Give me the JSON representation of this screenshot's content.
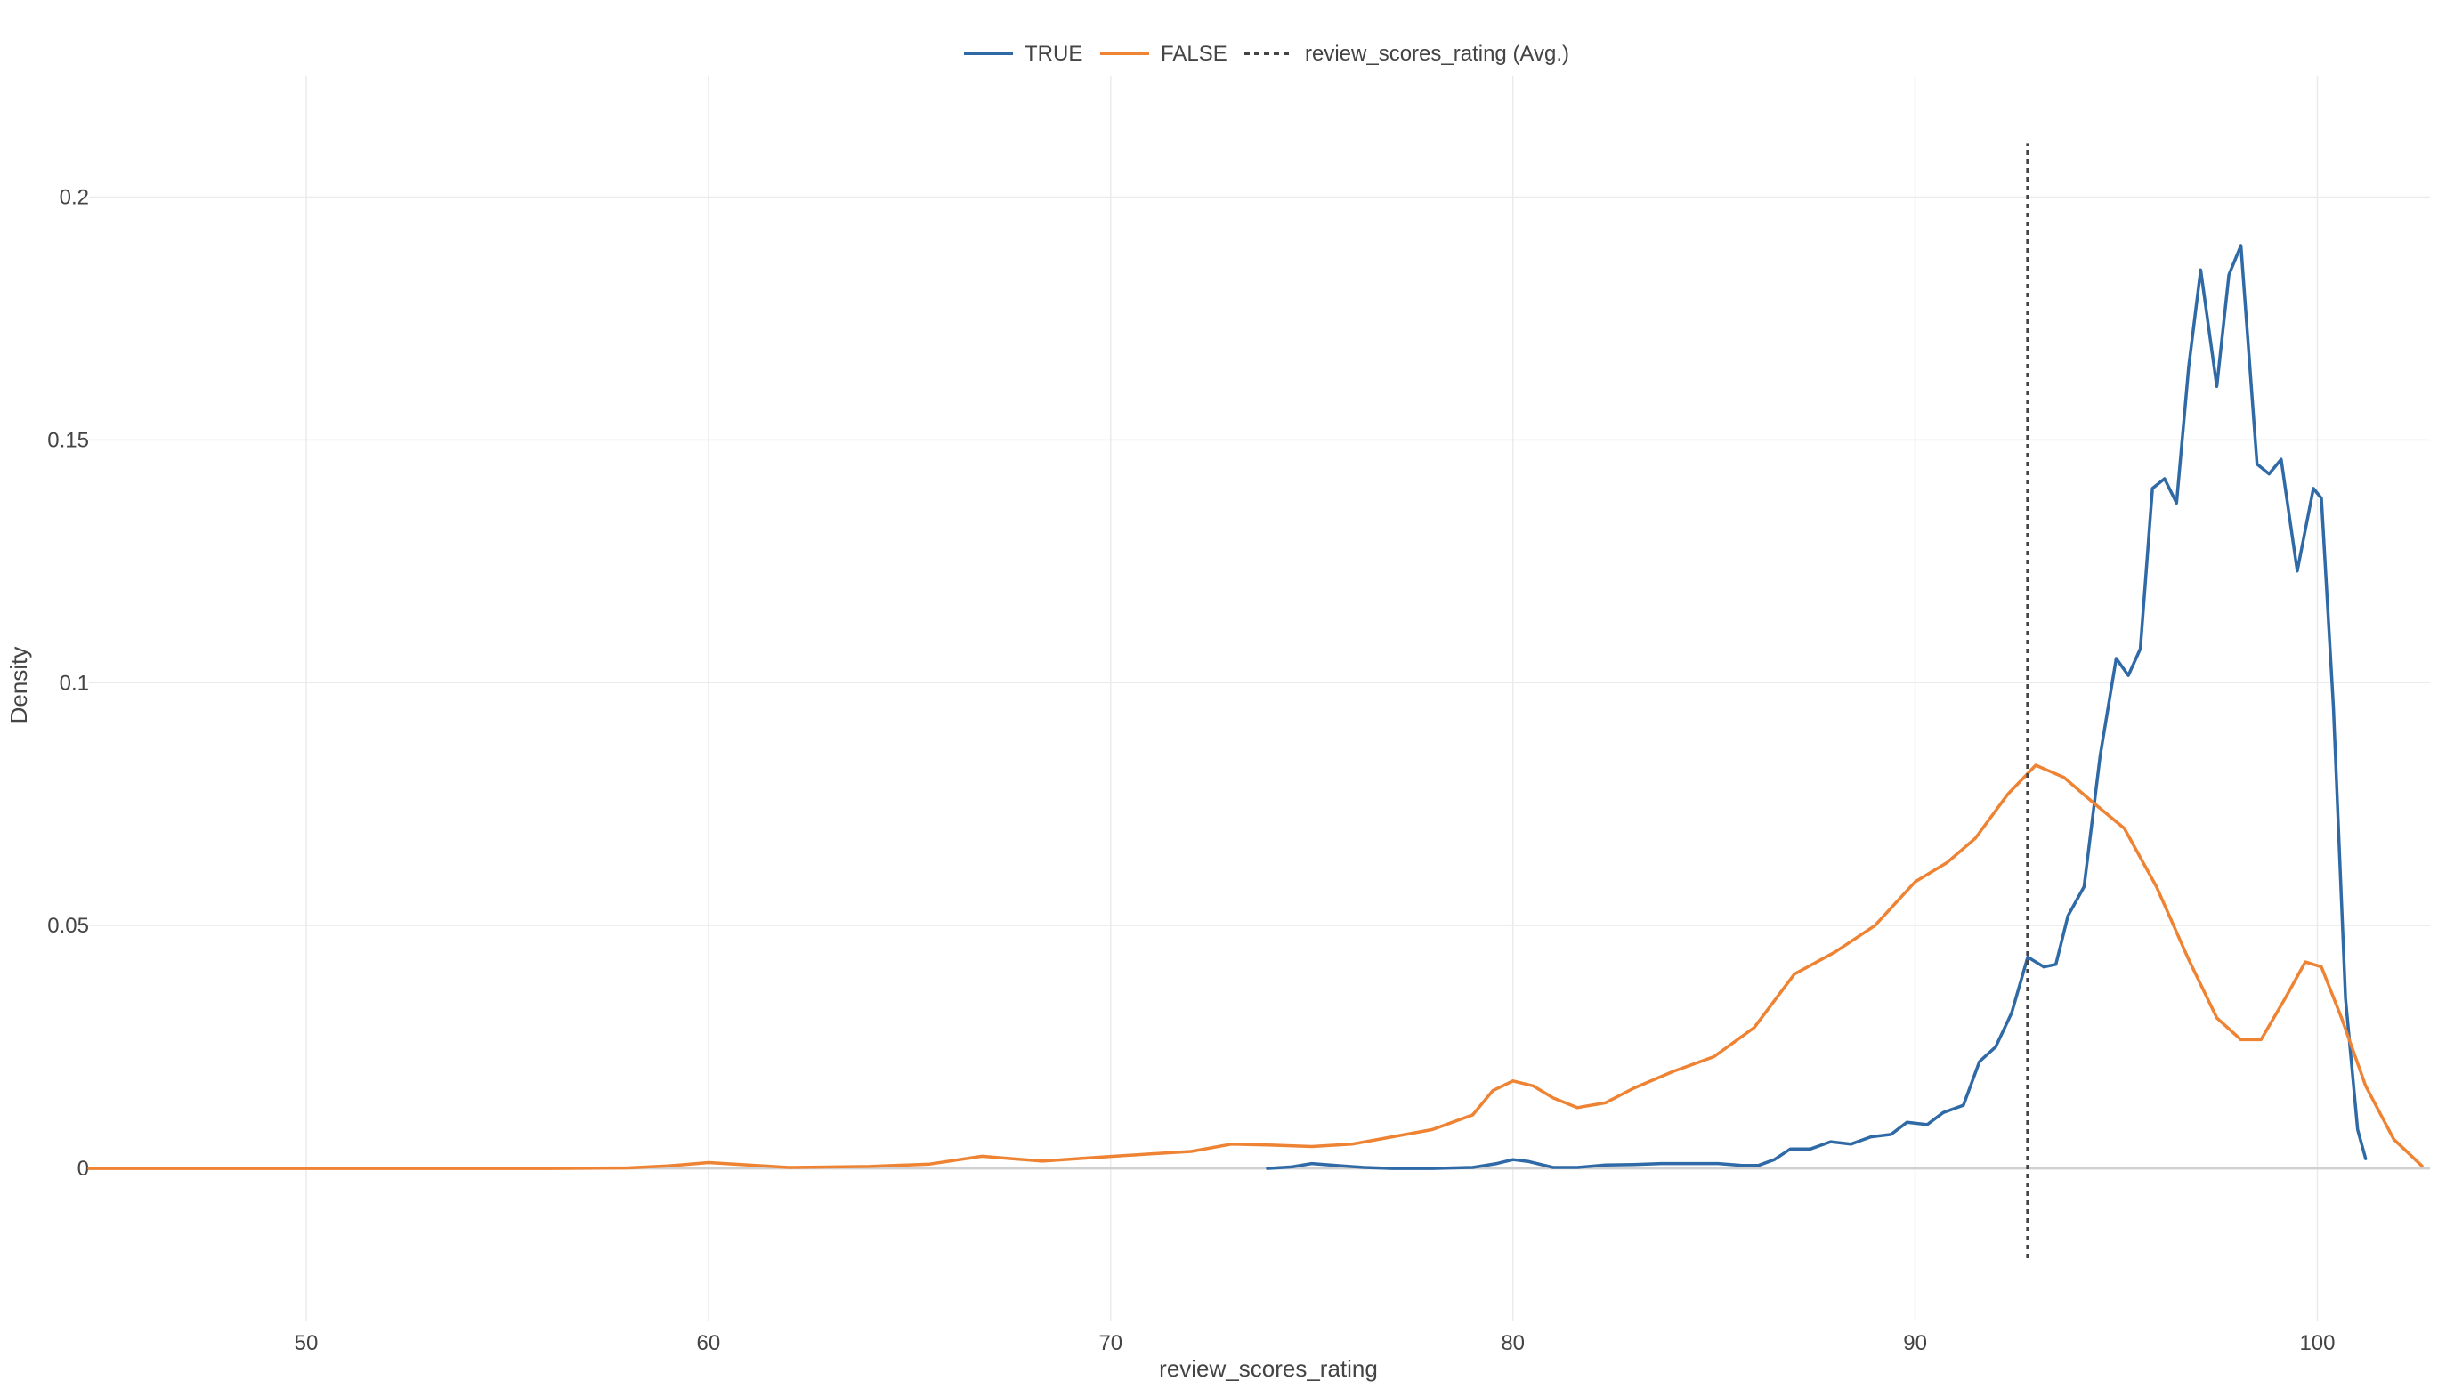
{
  "chart_data": {
    "type": "line",
    "xlabel": "review_scores_rating",
    "ylabel": "Density",
    "xlim": [
      44.6,
      102.8
    ],
    "ylim": [
      -0.0315,
      0.225
    ],
    "x_ticks": [
      50,
      60,
      70,
      80,
      90,
      100
    ],
    "x_tick_labels": [
      "50",
      "60",
      "70",
      "80",
      "90",
      "100"
    ],
    "y_ticks": [
      0,
      0.05,
      0.1,
      0.15,
      0.2
    ],
    "y_tick_labels": [
      "0",
      "0.05",
      "0.1",
      "0.15",
      "0.2"
    ],
    "grid": true,
    "legend_position": "top-center",
    "series": [
      {
        "name": "TRUE",
        "color": "#2f6aa6",
        "style": "solid",
        "points": [
          [
            73.9,
            0.0
          ],
          [
            74.5,
            0.0003
          ],
          [
            75.0,
            0.001
          ],
          [
            75.6,
            0.0006
          ],
          [
            76.3,
            0.0002
          ],
          [
            77.0,
            0.0
          ],
          [
            78.0,
            0.0
          ],
          [
            79.0,
            0.0002
          ],
          [
            79.6,
            0.001
          ],
          [
            80.0,
            0.0018
          ],
          [
            80.4,
            0.0014
          ],
          [
            81.0,
            0.0002
          ],
          [
            81.6,
            0.0002
          ],
          [
            82.3,
            0.0007
          ],
          [
            83.0,
            0.0008
          ],
          [
            83.7,
            0.001
          ],
          [
            84.4,
            0.001
          ],
          [
            85.1,
            0.001
          ],
          [
            85.7,
            0.0006
          ],
          [
            86.1,
            0.0006
          ],
          [
            86.5,
            0.0018
          ],
          [
            86.9,
            0.004
          ],
          [
            87.4,
            0.004
          ],
          [
            87.9,
            0.0055
          ],
          [
            88.4,
            0.005
          ],
          [
            88.9,
            0.0065
          ],
          [
            89.4,
            0.007
          ],
          [
            89.8,
            0.0095
          ],
          [
            90.3,
            0.009
          ],
          [
            90.7,
            0.0115
          ],
          [
            91.2,
            0.013
          ],
          [
            91.6,
            0.022
          ],
          [
            92.0,
            0.025
          ],
          [
            92.4,
            0.032
          ],
          [
            92.8,
            0.0435
          ],
          [
            93.2,
            0.0415
          ],
          [
            93.5,
            0.042
          ],
          [
            93.8,
            0.052
          ],
          [
            94.2,
            0.058
          ],
          [
            94.6,
            0.085
          ],
          [
            95.0,
            0.105
          ],
          [
            95.3,
            0.1015
          ],
          [
            95.6,
            0.107
          ],
          [
            95.9,
            0.14
          ],
          [
            96.2,
            0.142
          ],
          [
            96.5,
            0.137
          ],
          [
            96.8,
            0.165
          ],
          [
            97.1,
            0.185
          ],
          [
            97.5,
            0.161
          ],
          [
            97.8,
            0.184
          ],
          [
            98.1,
            0.19
          ],
          [
            98.5,
            0.145
          ],
          [
            98.8,
            0.143
          ],
          [
            99.1,
            0.146
          ],
          [
            99.5,
            0.123
          ],
          [
            99.9,
            0.14
          ],
          [
            100.1,
            0.138
          ],
          [
            100.4,
            0.095
          ],
          [
            100.7,
            0.035
          ],
          [
            101.0,
            0.008
          ],
          [
            101.2,
            0.002
          ]
        ]
      },
      {
        "name": "FALSE",
        "color": "#ee8333",
        "style": "solid",
        "points": [
          [
            44.6,
            0.0
          ],
          [
            50.0,
            0.0
          ],
          [
            56.0,
            0.0
          ],
          [
            58.0,
            0.0001
          ],
          [
            59.0,
            0.0005
          ],
          [
            60.0,
            0.0012
          ],
          [
            61.0,
            0.0007
          ],
          [
            62.0,
            0.0002
          ],
          [
            64.0,
            0.0004
          ],
          [
            65.5,
            0.0009
          ],
          [
            66.8,
            0.0025
          ],
          [
            68.3,
            0.0015
          ],
          [
            69.5,
            0.0022
          ],
          [
            71.0,
            0.003
          ],
          [
            72.0,
            0.0035
          ],
          [
            73.0,
            0.005
          ],
          [
            74.0,
            0.0048
          ],
          [
            75.0,
            0.0045
          ],
          [
            76.0,
            0.005
          ],
          [
            77.0,
            0.0065
          ],
          [
            78.0,
            0.008
          ],
          [
            79.0,
            0.011
          ],
          [
            79.5,
            0.016
          ],
          [
            80.0,
            0.018
          ],
          [
            80.5,
            0.017
          ],
          [
            81.0,
            0.0145
          ],
          [
            81.6,
            0.0125
          ],
          [
            82.3,
            0.0135
          ],
          [
            83.0,
            0.0165
          ],
          [
            84.0,
            0.02
          ],
          [
            85.0,
            0.023
          ],
          [
            86.0,
            0.029
          ],
          [
            87.0,
            0.04
          ],
          [
            88.0,
            0.0445
          ],
          [
            89.0,
            0.05
          ],
          [
            90.0,
            0.059
          ],
          [
            90.8,
            0.063
          ],
          [
            91.5,
            0.068
          ],
          [
            92.3,
            0.077
          ],
          [
            93.0,
            0.083
          ],
          [
            93.7,
            0.0805
          ],
          [
            94.4,
            0.0755
          ],
          [
            95.2,
            0.07
          ],
          [
            96.0,
            0.058
          ],
          [
            96.8,
            0.043
          ],
          [
            97.5,
            0.031
          ],
          [
            98.1,
            0.0265
          ],
          [
            98.6,
            0.0265
          ],
          [
            99.2,
            0.035
          ],
          [
            99.7,
            0.0425
          ],
          [
            100.1,
            0.0415
          ],
          [
            100.6,
            0.031
          ],
          [
            101.2,
            0.017
          ],
          [
            101.9,
            0.006
          ],
          [
            102.6,
            0.0005
          ]
        ]
      },
      {
        "name": "review_scores_rating (Avg.)",
        "color": "#444444",
        "style": "dotted",
        "points": [
          [
            92.8,
            -0.0185
          ],
          [
            92.8,
            0.211
          ]
        ]
      }
    ]
  }
}
